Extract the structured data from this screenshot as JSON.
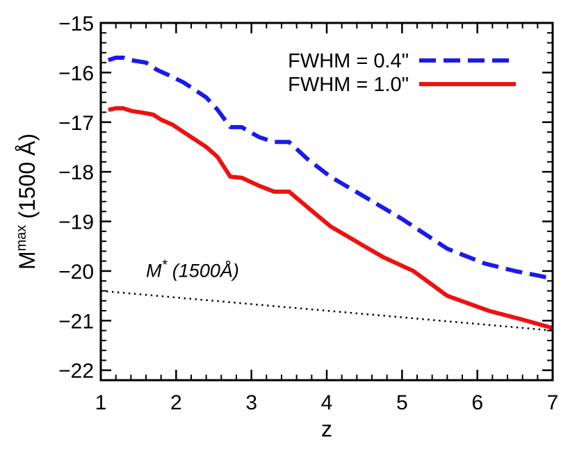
{
  "chart_data": {
    "type": "line",
    "xlabel": "z",
    "ylabel": {
      "base": "M",
      "sup": "max",
      "rest": " (1500 Å)"
    },
    "xlim": [
      1,
      7
    ],
    "ylim": [
      -22.2,
      -15
    ],
    "x_ticks": [
      1,
      2,
      3,
      4,
      5,
      6,
      7
    ],
    "x_tick_labels": [
      "1",
      "2",
      "3",
      "4",
      "5",
      "6",
      "7"
    ],
    "y_ticks": [
      -15,
      -16,
      -17,
      -18,
      -19,
      -20,
      -21,
      -22
    ],
    "y_tick_labels": [
      "−15",
      "−16",
      "−17",
      "−18",
      "−19",
      "−20",
      "−21",
      "−22"
    ],
    "grid": false,
    "legend_position": "top-right",
    "series": [
      {
        "name": "FWHM = 0.4\"",
        "color": "#1a1aee",
        "style": "dashed",
        "x": [
          1.1,
          1.2,
          1.3,
          1.4,
          1.6,
          1.75,
          1.9,
          2.1,
          2.4,
          2.55,
          2.72,
          2.87,
          3.1,
          3.3,
          3.5,
          3.75,
          4.05,
          4.5,
          5.0,
          5.6,
          6.1,
          6.5,
          7.0
        ],
        "y": [
          -15.75,
          -15.7,
          -15.7,
          -15.75,
          -15.8,
          -15.95,
          -16.05,
          -16.2,
          -16.5,
          -16.75,
          -17.1,
          -17.1,
          -17.3,
          -17.4,
          -17.4,
          -17.75,
          -18.1,
          -18.5,
          -18.95,
          -19.55,
          -19.85,
          -20.0,
          -20.15
        ]
      },
      {
        "name": "FWHM = 1.0\"",
        "color": "#ee1111",
        "style": "solid",
        "x": [
          1.1,
          1.2,
          1.3,
          1.4,
          1.6,
          1.7,
          1.8,
          1.95,
          2.15,
          2.4,
          2.55,
          2.72,
          2.87,
          3.1,
          3.3,
          3.5,
          3.75,
          4.05,
          4.5,
          4.75,
          5.15,
          5.6,
          6.15,
          6.6,
          7.0
        ],
        "y": [
          -16.75,
          -16.72,
          -16.72,
          -16.77,
          -16.82,
          -16.85,
          -16.95,
          -17.05,
          -17.25,
          -17.5,
          -17.7,
          -18.1,
          -18.12,
          -18.28,
          -18.4,
          -18.4,
          -18.72,
          -19.1,
          -19.5,
          -19.72,
          -20.0,
          -20.5,
          -20.8,
          -20.98,
          -21.15
        ]
      },
      {
        "name": "",
        "color": "#000000",
        "style": "dotted",
        "x": [
          1.0,
          7.0
        ],
        "y": [
          -20.4,
          -21.2
        ]
      }
    ],
    "annotations": [
      {
        "text_main": "M",
        "text_sup": "*",
        "text_rest": " (1500Å)",
        "x": 1.6,
        "y": -20.12
      }
    ]
  }
}
